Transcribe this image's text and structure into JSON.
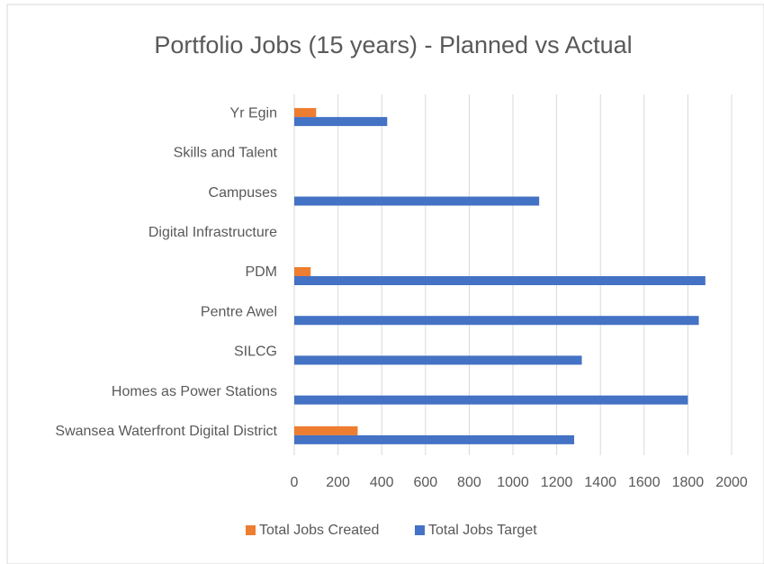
{
  "chart_data": {
    "type": "hbar",
    "title": "Portfolio Jobs (15 years) - Planned vs Actual",
    "categories": [
      "Yr Egin",
      "Skills and Talent",
      "Campuses",
      "Digital Infrastructure",
      "PDM",
      "Pentre Awel",
      "SILCG",
      "Homes as Power Stations",
      "Swansea Waterfront Digital District"
    ],
    "series": [
      {
        "name": "Total Jobs Created",
        "color": "#ed7d31",
        "values": [
          100,
          0,
          0,
          0,
          75,
          0,
          0,
          0,
          290
        ]
      },
      {
        "name": "Total Jobs Target",
        "color": "#4472c4",
        "values": [
          425,
          0,
          1120,
          0,
          1880,
          1850,
          1315,
          1800,
          1280
        ]
      }
    ],
    "xlim": [
      0,
      2000
    ],
    "xticks": [
      0,
      200,
      400,
      600,
      800,
      1000,
      1200,
      1400,
      1600,
      1800,
      2000
    ],
    "grid": true,
    "legend": "bottom"
  }
}
